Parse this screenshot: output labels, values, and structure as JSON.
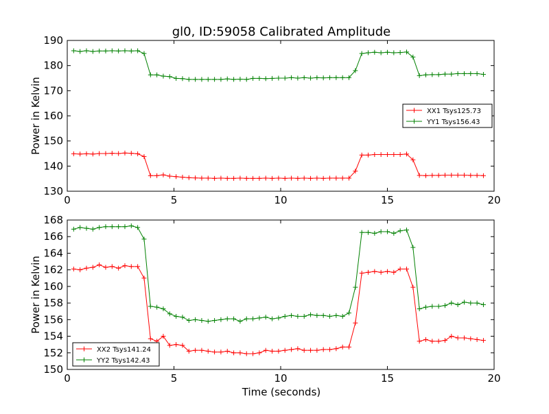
{
  "chart_data": [
    {
      "type": "line",
      "title": "gl0, ID:59058 Calibrated Amplitude",
      "xlabel": "",
      "ylabel": "Power in Kelvin",
      "xlim": [
        0,
        20
      ],
      "ylim": [
        130,
        190
      ],
      "xticks": [
        0,
        5,
        10,
        15,
        20
      ],
      "yticks": [
        130,
        140,
        150,
        160,
        170,
        180,
        190
      ],
      "grid": false,
      "legend_position": "right",
      "marker": "+",
      "x": [
        0.3,
        0.6,
        0.9,
        1.2,
        1.5,
        1.8,
        2.1,
        2.4,
        2.7,
        3.0,
        3.3,
        3.6,
        3.9,
        4.2,
        4.5,
        4.8,
        5.1,
        5.4,
        5.7,
        6.0,
        6.3,
        6.6,
        6.9,
        7.2,
        7.5,
        7.8,
        8.1,
        8.4,
        8.7,
        9.0,
        9.3,
        9.6,
        9.9,
        10.2,
        10.5,
        10.8,
        11.1,
        11.4,
        11.7,
        12.0,
        12.3,
        12.6,
        12.9,
        13.2,
        13.5,
        13.8,
        14.1,
        14.4,
        14.7,
        15.0,
        15.3,
        15.6,
        15.9,
        16.2,
        16.5,
        16.8,
        17.1,
        17.4,
        17.7,
        18.0,
        18.3,
        18.6,
        18.9,
        19.2,
        19.5
      ],
      "series": [
        {
          "name": "XX1 Tsys125.73",
          "color": "#ff0000",
          "values": [
            144.9,
            144.8,
            144.9,
            144.8,
            145.0,
            145.0,
            145.1,
            145.0,
            145.2,
            145.1,
            144.9,
            143.8,
            136.2,
            136.2,
            136.5,
            136.0,
            135.8,
            135.6,
            135.4,
            135.3,
            135.2,
            135.2,
            135.1,
            135.2,
            135.1,
            135.1,
            135.2,
            135.1,
            135.1,
            135.1,
            135.2,
            135.1,
            135.2,
            135.1,
            135.2,
            135.1,
            135.2,
            135.1,
            135.2,
            135.1,
            135.2,
            135.2,
            135.2,
            135.2,
            138.0,
            144.4,
            144.4,
            144.6,
            144.6,
            144.6,
            144.6,
            144.6,
            144.8,
            142.5,
            136.3,
            136.2,
            136.3,
            136.3,
            136.4,
            136.4,
            136.4,
            136.4,
            136.3,
            136.3,
            136.2
          ]
        },
        {
          "name": "YY1 Tsys156.43",
          "color": "#008000",
          "values": [
            185.9,
            185.6,
            185.9,
            185.6,
            185.8,
            185.8,
            185.9,
            185.8,
            185.9,
            185.8,
            185.9,
            184.8,
            176.3,
            176.3,
            175.8,
            175.6,
            174.9,
            174.8,
            174.5,
            174.5,
            174.5,
            174.5,
            174.5,
            174.5,
            174.7,
            174.5,
            174.6,
            174.5,
            174.9,
            174.9,
            174.8,
            174.9,
            175.0,
            175.0,
            175.2,
            175.0,
            175.2,
            175.0,
            175.2,
            175.1,
            175.2,
            175.2,
            175.2,
            175.2,
            178.0,
            184.8,
            185.1,
            185.3,
            185.1,
            185.3,
            185.1,
            185.2,
            185.4,
            183.4,
            176.0,
            176.3,
            176.4,
            176.4,
            176.6,
            176.6,
            176.8,
            176.8,
            176.8,
            176.8,
            176.5
          ]
        }
      ]
    },
    {
      "type": "line",
      "title": "",
      "xlabel": "Time (seconds)",
      "ylabel": "Power in Kelvin",
      "xlim": [
        0,
        20
      ],
      "ylim": [
        150,
        168
      ],
      "xticks": [
        0,
        5,
        10,
        15,
        20
      ],
      "yticks": [
        150,
        152,
        154,
        156,
        158,
        160,
        162,
        164,
        166,
        168
      ],
      "grid": false,
      "legend_position": "bottom-left",
      "marker": "+",
      "x": [
        0.3,
        0.6,
        0.9,
        1.2,
        1.5,
        1.8,
        2.1,
        2.4,
        2.7,
        3.0,
        3.3,
        3.6,
        3.9,
        4.2,
        4.5,
        4.8,
        5.1,
        5.4,
        5.7,
        6.0,
        6.3,
        6.6,
        6.9,
        7.2,
        7.5,
        7.8,
        8.1,
        8.4,
        8.7,
        9.0,
        9.3,
        9.6,
        9.9,
        10.2,
        10.5,
        10.8,
        11.1,
        11.4,
        11.7,
        12.0,
        12.3,
        12.6,
        12.9,
        13.2,
        13.5,
        13.8,
        14.1,
        14.4,
        14.7,
        15.0,
        15.3,
        15.6,
        15.9,
        16.2,
        16.5,
        16.8,
        17.1,
        17.4,
        17.7,
        18.0,
        18.3,
        18.6,
        18.9,
        19.2,
        19.5
      ],
      "series": [
        {
          "name": "XX2 Tsys141.24",
          "color": "#ff0000",
          "values": [
            162.1,
            162.0,
            162.2,
            162.3,
            162.6,
            162.3,
            162.4,
            162.2,
            162.5,
            162.4,
            162.4,
            161.0,
            153.7,
            153.4,
            154.0,
            152.9,
            153.0,
            152.9,
            152.2,
            152.3,
            152.3,
            152.2,
            152.1,
            152.1,
            152.2,
            152.0,
            152.0,
            151.9,
            151.9,
            152.0,
            152.3,
            152.2,
            152.2,
            152.3,
            152.4,
            152.5,
            152.3,
            152.3,
            152.3,
            152.4,
            152.4,
            152.5,
            152.7,
            152.7,
            155.6,
            161.6,
            161.7,
            161.8,
            161.7,
            161.8,
            161.7,
            162.1,
            162.1,
            159.9,
            153.4,
            153.6,
            153.4,
            153.4,
            153.5,
            154.0,
            153.8,
            153.8,
            153.7,
            153.6,
            153.5
          ]
        },
        {
          "name": "YY2 Tsys142.43",
          "color": "#008000",
          "values": [
            166.9,
            167.1,
            167.0,
            166.9,
            167.1,
            167.2,
            167.2,
            167.2,
            167.2,
            167.3,
            167.1,
            165.7,
            157.6,
            157.5,
            157.3,
            156.7,
            156.4,
            156.3,
            155.9,
            156.0,
            155.9,
            155.8,
            155.9,
            156.0,
            156.1,
            156.1,
            155.8,
            156.1,
            156.1,
            156.2,
            156.3,
            156.1,
            156.2,
            156.4,
            156.5,
            156.4,
            156.4,
            156.6,
            156.5,
            156.5,
            156.4,
            156.5,
            156.4,
            156.8,
            159.9,
            166.5,
            166.5,
            166.4,
            166.6,
            166.6,
            166.4,
            166.7,
            166.8,
            164.7,
            157.3,
            157.5,
            157.6,
            157.6,
            157.7,
            158.0,
            157.8,
            158.1,
            158.0,
            158.0,
            157.8
          ]
        }
      ]
    }
  ]
}
